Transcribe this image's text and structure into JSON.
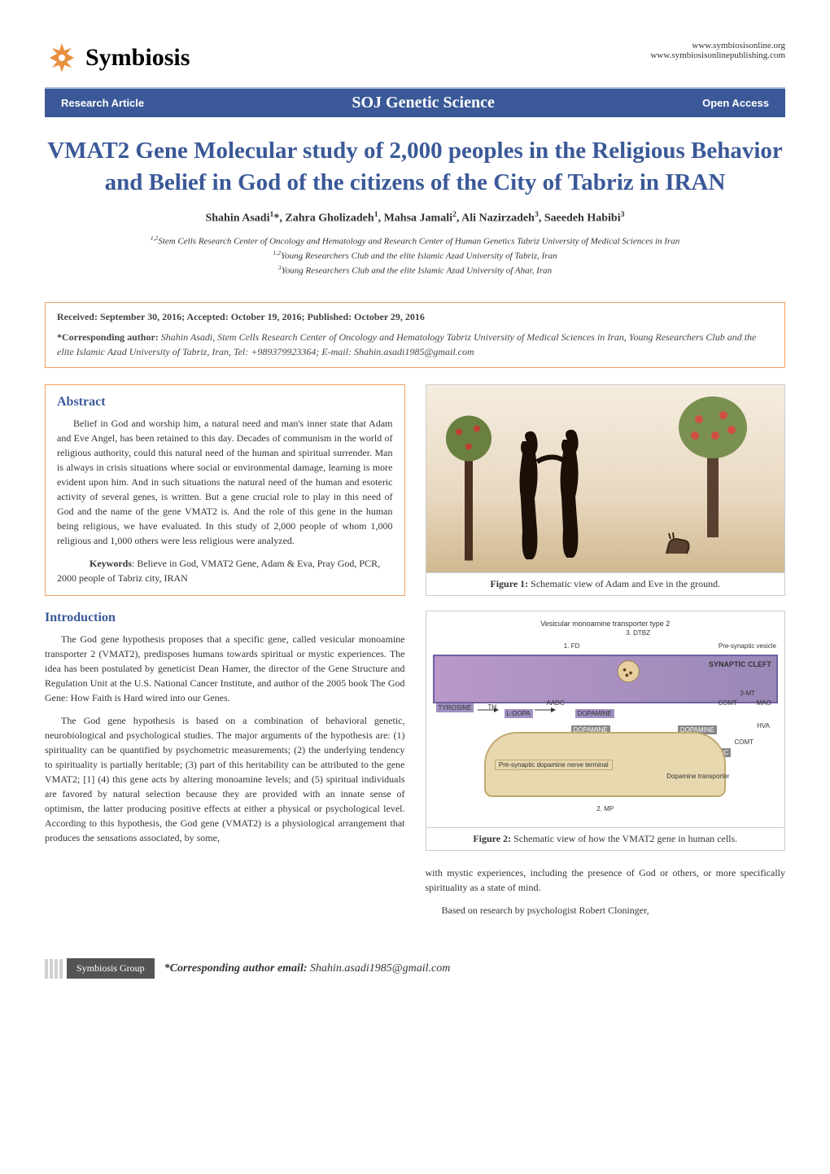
{
  "header": {
    "logo_text": "Symbiosis",
    "url1": "www.symbiosisonline.org",
    "url2": "www.symbiosisonlinepublishing.com"
  },
  "banner": {
    "left": "Research Article",
    "center": "SOJ Genetic Science",
    "right": "Open Access"
  },
  "article": {
    "title": "VMAT2 Gene Molecular study of 2,000 peoples in the Religious Behavior and Belief in God of the citizens of the City of Tabriz in IRAN",
    "authors_html": "Shahin Asadi<sup>1</sup>*, Zahra Gholizadeh<sup>1</sup>, Mahsa Jamali<sup>2</sup>, Ali Nazirzadeh<sup>3</sup>, Saeedeh Habibi<sup>3</sup>",
    "affiliation1": "1,2Stem Cells Research Center of Oncology and Hematology and Research Center of Human Genetics Tabriz University of Medical Sciences in Iran",
    "affiliation2": "1,2Young Researchers Club and the elite Islamic Azad University of Tabriz, Iran",
    "affiliation3": "3Young Researchers Club and the elite Islamic Azad University of Ahar, Iran"
  },
  "info": {
    "dates": "Received: September 30, 2016; Accepted: October 19, 2016; Published:  October 29, 2016",
    "corresponding_label": "*Corresponding author:",
    "corresponding_text": " Shahin Asadi, Stem Cells Research Center of Oncology and Hematology Tabriz University of Medical Sciences in Iran, Young Researchers Club and the elite Islamic Azad University of Tabriz, Iran, Tel: +989379923364; E-mail: Shahin.asadi1985@gmail.com"
  },
  "abstract": {
    "heading": "Abstract",
    "p1": "Belief in God and worship him, a natural need and man's inner state that Adam and Eve Angel, has been retained to this day. Decades of communism in the world of religious authority, could this natural need of the human and spiritual surrender. Man is always in crisis situations where social or environmental damage, learning is more evident upon him. And in such situations the natural need of the human and esoteric activity of several genes, is written. But a gene crucial role to play in this need of God and the name of the gene VMAT2 is. And the role of this gene in the human being religious, we have evaluated. In this study of 2,000 people of whom 1,000 religious and 1,000 others were less religious were analyzed.",
    "keywords_label": "Keywords",
    "keywords_text": ": Believe in God, VMAT2 Gene, Adam & Eva, Pray God, PCR, 2000 people of Tabriz city, IRAN"
  },
  "introduction": {
    "heading": "Introduction",
    "p1": "The God gene hypothesis proposes that a specific gene, called vesicular monoamine transporter 2 (VMAT2), predisposes humans towards spiritual or mystic experiences. The idea has been postulated by geneticist Dean Hamer, the director of the Gene Structure and Regulation Unit at the U.S. National Cancer Institute, and author of the 2005 book The God Gene: How Faith is Hard wired into our Genes.",
    "p2": "The God gene hypothesis is based on a combination of behavioral genetic, neurobiological and psychological studies. The major arguments of the hypothesis are: (1) spirituality can be quantified by psychometric measurements; (2) the underlying tendency to spirituality is partially heritable; (3) part of this heritability can be attributed to the gene VMAT2; [1] (4) this gene acts by altering monoamine levels; and (5) spiritual individuals are favored by natural selection because they are provided with an innate sense of optimism, the latter producing positive effects at either a physical or psychological level. According to this hypothesis, the God gene (VMAT2) is a physiological arrangement that produces the sensations associated, by some,",
    "p3": "with mystic experiences, including the presence of God or others, or more specifically spirituality as a state of mind.",
    "p4": "Based on research by psychologist Robert Cloninger,"
  },
  "figures": {
    "fig1_label": "Figure 1:",
    "fig1_caption": " Schematic view of Adam and Eve in the ground.",
    "fig2_label": "Figure 2:",
    "fig2_caption": " Schematic view of how the VMAT2 gene in human cells.",
    "fig2_labels": {
      "title": "Vesicular monoamine transporter type 2",
      "dtbz": "3. DTBZ",
      "fd": "1. FD",
      "vesicle": "Pre-synaptic vesicle",
      "cleft": "SYNAPTIC CLEFT",
      "tyrosine": "TYROSINE",
      "ldopa": "L-DOPA",
      "dopamine": "DOPAMINE",
      "th": "TH",
      "aadc": "AADC",
      "comt": "COMT",
      "mao": "MAO",
      "mt3": "3-MT",
      "hva": "HVA",
      "dopac": "DOPAC",
      "terminal": "Pre-synaptic dopamine nerve terminal",
      "transporter": "Dopamine transporter",
      "mp": "2. MP"
    }
  },
  "footer": {
    "badge": "Symbiosis Group",
    "email_label": "*Corresponding author email:",
    "email": " Shahin.asadi1985@gmail.com"
  },
  "colors": {
    "blue_primary": "#3b5998",
    "orange_border": "#f0a060",
    "gray_badge": "#545454"
  }
}
